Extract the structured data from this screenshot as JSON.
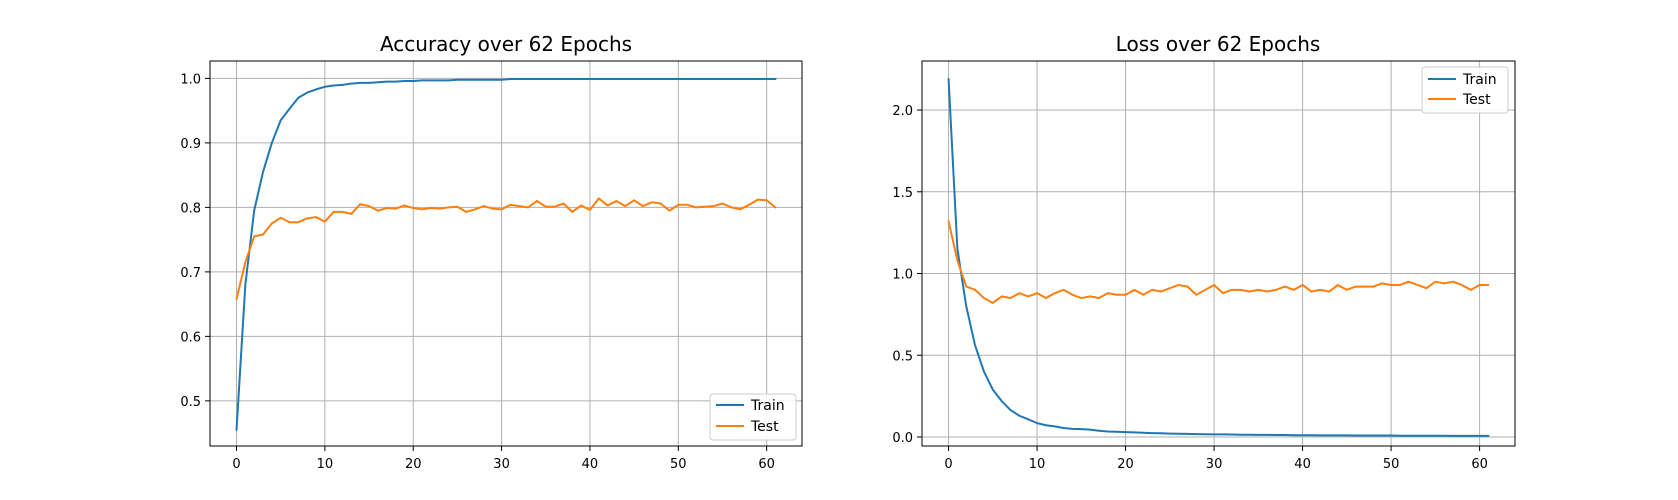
{
  "chart_data": [
    {
      "type": "line",
      "title": "Accuracy over 62 Epochs",
      "xlabel": "",
      "ylabel": "",
      "xlim": [
        -3,
        64
      ],
      "ylim": [
        0.43,
        1.027
      ],
      "xticks": [
        0,
        10,
        20,
        30,
        40,
        50,
        60
      ],
      "yticks": [
        0.5,
        0.6,
        0.7,
        0.8,
        0.9,
        1.0
      ],
      "ytick_labels": [
        "0.5",
        "0.6",
        "0.7",
        "0.8",
        "0.9",
        "1.0"
      ],
      "grid": true,
      "legend": "lower-right",
      "series": [
        {
          "name": "Train",
          "color": "#1f77b4",
          "values": [
            0.455,
            0.68,
            0.795,
            0.855,
            0.9,
            0.935,
            0.953,
            0.97,
            0.978,
            0.983,
            0.987,
            0.989,
            0.99,
            0.992,
            0.993,
            0.993,
            0.994,
            0.995,
            0.995,
            0.996,
            0.996,
            0.997,
            0.997,
            0.997,
            0.997,
            0.998,
            0.998,
            0.998,
            0.998,
            0.998,
            0.998,
            0.999,
            0.999,
            0.999,
            0.999,
            0.999,
            0.999,
            0.999,
            0.999,
            0.999,
            0.999,
            0.999,
            0.999,
            0.999,
            0.999,
            0.999,
            0.999,
            0.999,
            0.999,
            0.999,
            0.999,
            0.999,
            0.999,
            0.999,
            0.999,
            0.999,
            0.999,
            0.999,
            0.999,
            0.999,
            0.999,
            0.999
          ]
        },
        {
          "name": "Test",
          "color": "#ff7f0e",
          "values": [
            0.658,
            0.715,
            0.755,
            0.758,
            0.775,
            0.784,
            0.777,
            0.777,
            0.783,
            0.785,
            0.778,
            0.793,
            0.793,
            0.79,
            0.805,
            0.802,
            0.795,
            0.799,
            0.798,
            0.803,
            0.799,
            0.797,
            0.799,
            0.798,
            0.8,
            0.801,
            0.793,
            0.797,
            0.802,
            0.798,
            0.797,
            0.804,
            0.802,
            0.8,
            0.81,
            0.801,
            0.801,
            0.806,
            0.793,
            0.803,
            0.796,
            0.814,
            0.803,
            0.81,
            0.802,
            0.811,
            0.802,
            0.808,
            0.806,
            0.795,
            0.804,
            0.804,
            0.8,
            0.801,
            0.802,
            0.806,
            0.8,
            0.797,
            0.804,
            0.812,
            0.811,
            0.8
          ]
        }
      ]
    },
    {
      "type": "line",
      "title": "Loss over 62 Epochs",
      "xlabel": "",
      "ylabel": "",
      "xlim": [
        -3,
        64
      ],
      "ylim": [
        -0.055,
        2.3
      ],
      "xticks": [
        0,
        10,
        20,
        30,
        40,
        50,
        60
      ],
      "yticks": [
        0.0,
        0.5,
        1.0,
        1.5,
        2.0
      ],
      "ytick_labels": [
        "0.0",
        "0.5",
        "1.0",
        "1.5",
        "2.0"
      ],
      "grid": true,
      "legend": "upper-right",
      "series": [
        {
          "name": "Train",
          "color": "#1f77b4",
          "values": [
            2.19,
            1.15,
            0.8,
            0.56,
            0.4,
            0.29,
            0.22,
            0.165,
            0.13,
            0.108,
            0.085,
            0.072,
            0.065,
            0.055,
            0.05,
            0.048,
            0.045,
            0.038,
            0.034,
            0.032,
            0.03,
            0.028,
            0.026,
            0.024,
            0.023,
            0.021,
            0.02,
            0.019,
            0.018,
            0.017,
            0.016,
            0.016,
            0.015,
            0.014,
            0.014,
            0.013,
            0.013,
            0.012,
            0.012,
            0.011,
            0.011,
            0.011,
            0.01,
            0.01,
            0.01,
            0.01,
            0.009,
            0.009,
            0.009,
            0.009,
            0.009,
            0.008,
            0.008,
            0.008,
            0.008,
            0.008,
            0.008,
            0.007,
            0.007,
            0.007,
            0.007,
            0.007
          ]
        },
        {
          "name": "Test",
          "color": "#ff7f0e",
          "values": [
            1.32,
            1.08,
            0.92,
            0.9,
            0.85,
            0.82,
            0.86,
            0.85,
            0.88,
            0.86,
            0.88,
            0.85,
            0.88,
            0.9,
            0.87,
            0.85,
            0.86,
            0.85,
            0.88,
            0.87,
            0.87,
            0.9,
            0.87,
            0.9,
            0.89,
            0.91,
            0.93,
            0.92,
            0.87,
            0.9,
            0.93,
            0.88,
            0.9,
            0.9,
            0.89,
            0.9,
            0.89,
            0.9,
            0.92,
            0.9,
            0.93,
            0.89,
            0.9,
            0.89,
            0.93,
            0.9,
            0.92,
            0.92,
            0.92,
            0.94,
            0.93,
            0.93,
            0.95,
            0.93,
            0.91,
            0.95,
            0.94,
            0.95,
            0.93,
            0.9,
            0.93,
            0.93
          ]
        }
      ]
    }
  ]
}
